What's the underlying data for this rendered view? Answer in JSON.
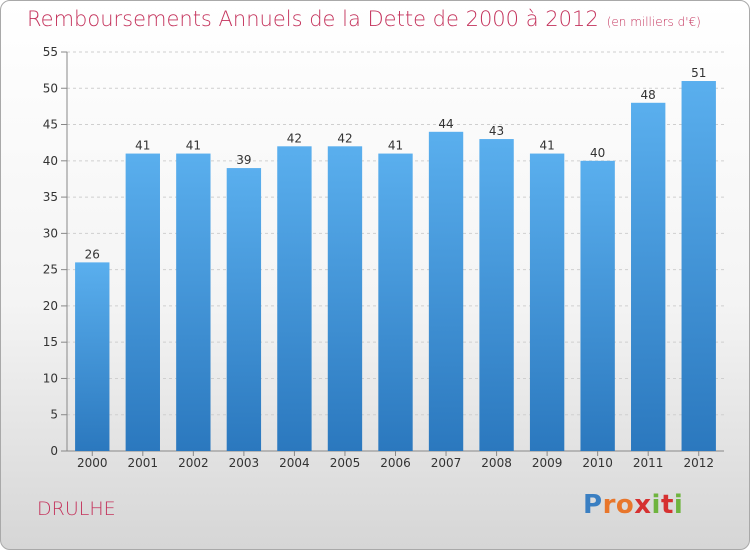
{
  "title": "Remboursements Annuels de la Dette de 2000 à 2012",
  "unit": "(en milliers d'€)",
  "commune": "DRULHE",
  "logo": {
    "letters": [
      "P",
      "r",
      "o",
      "x",
      "i",
      "t",
      "i"
    ],
    "colors": [
      "#3a7fc2",
      "#e8762b",
      "#e8762b",
      "#d63131",
      "#6fb43f",
      "#d63131",
      "#6fb43f"
    ]
  },
  "colors": {
    "bar_top": "#5aafee",
    "bar_bottom": "#2b78be",
    "title": "#c4335c"
  },
  "chart_data": {
    "type": "bar",
    "categories": [
      "2000",
      "2001",
      "2002",
      "2003",
      "2004",
      "2005",
      "2006",
      "2007",
      "2008",
      "2009",
      "2010",
      "2011",
      "2012"
    ],
    "values": [
      26,
      41,
      41,
      39,
      42,
      42,
      41,
      44,
      43,
      41,
      40,
      48,
      51
    ],
    "ylim": [
      0,
      55
    ],
    "yticks": [
      0,
      5,
      10,
      15,
      20,
      25,
      30,
      35,
      40,
      45,
      50,
      55
    ],
    "grid": true
  }
}
